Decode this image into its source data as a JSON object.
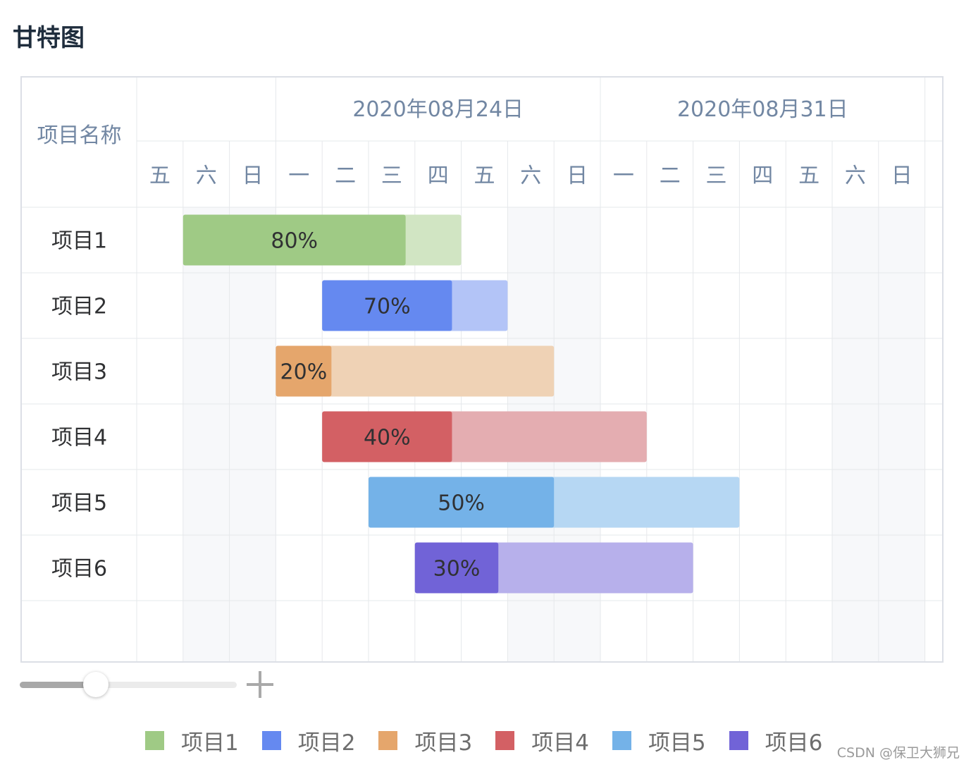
{
  "title": "甘特图",
  "watermark": "CSDN @保卫大狮兄",
  "chart_data": {
    "type": "gantt",
    "row_header": "项目名称",
    "week_labels": [
      {
        "label": "2020年08月24日",
        "start": 3
      },
      {
        "label": "2020年08月31日",
        "start": 10
      }
    ],
    "days": [
      "五",
      "六",
      "日",
      "一",
      "二",
      "三",
      "四",
      "五",
      "六",
      "日",
      "一",
      "二",
      "三",
      "四",
      "五",
      "六",
      "日"
    ],
    "weekend_columns": [
      1,
      2,
      8,
      9,
      15,
      16
    ],
    "tasks": [
      {
        "name": "项目1",
        "start": 1,
        "end": 7,
        "progress": 80,
        "label": "80%",
        "color": "#9fca85",
        "light": "#d1e5c3"
      },
      {
        "name": "项目2",
        "start": 4,
        "end": 8,
        "progress": 70,
        "label": "70%",
        "color": "#6589f0",
        "light": "#b3c4f7"
      },
      {
        "name": "项目3",
        "start": 3,
        "end": 9,
        "progress": 20,
        "label": "20%",
        "color": "#e5a66c",
        "light": "#efd2b5"
      },
      {
        "name": "项目4",
        "start": 4,
        "end": 11,
        "progress": 40,
        "label": "40%",
        "color": "#d36064",
        "light": "#e4adb1"
      },
      {
        "name": "项目5",
        "start": 5,
        "end": 13,
        "progress": 50,
        "label": "50%",
        "color": "#74b2e8",
        "light": "#b6d7f3"
      },
      {
        "name": "项目6",
        "start": 6,
        "end": 12,
        "progress": 30,
        "label": "30%",
        "color": "#7163d7",
        "light": "#b7b0eb"
      }
    ]
  },
  "zoom": {
    "level": 0.35
  },
  "legend": {
    "items": [
      {
        "label": "项目1",
        "color": "#9fca85"
      },
      {
        "label": "项目2",
        "color": "#6589f0"
      },
      {
        "label": "项目3",
        "color": "#e5a66c"
      },
      {
        "label": "项目4",
        "color": "#d36064"
      },
      {
        "label": "项目5",
        "color": "#74b2e8"
      },
      {
        "label": "项目6",
        "color": "#7163d7"
      }
    ]
  }
}
